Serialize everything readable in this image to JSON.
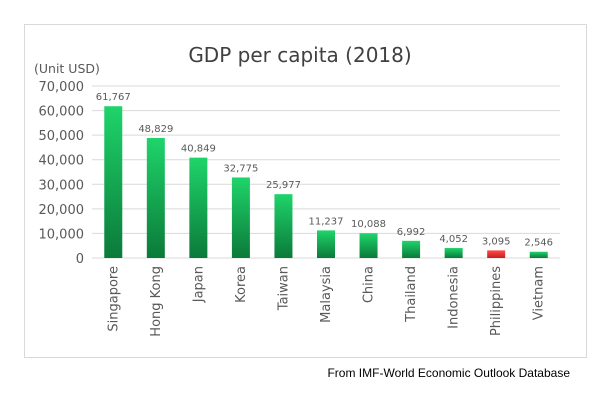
{
  "chart_data": {
    "type": "bar",
    "title": "GDP per capita (2018)",
    "unit_label": "(Unit USD)",
    "categories": [
      "Singapore",
      "Hong Kong",
      "Japan",
      "Korea",
      "Taiwan",
      "Malaysia",
      "China",
      "Thailand",
      "Indonesia",
      "Philippines",
      "Vietnam"
    ],
    "values": [
      61767,
      48829,
      40849,
      32775,
      25977,
      11237,
      10088,
      6992,
      4052,
      3095,
      2546
    ],
    "value_labels": [
      "61,767",
      "48,829",
      "40,849",
      "32,775",
      "25,977",
      "11,237",
      "10,088",
      "6,992",
      "4,052",
      "3,095",
      "2,546"
    ],
    "ylim": [
      0,
      70000
    ],
    "yticks": [
      0,
      10000,
      20000,
      30000,
      40000,
      50000,
      60000,
      70000
    ],
    "ytick_labels": [
      "0",
      "10,000",
      "20,000",
      "30,000",
      "40,000",
      "50,000",
      "60,000",
      "70,000"
    ],
    "grid": true,
    "colors": {
      "bar_top": "#1fd46a",
      "bar_bottom": "#0b7a3a",
      "highlight_top": "#ff4a4a",
      "highlight_bottom": "#c81e1e",
      "gridline": "#d9d9d9",
      "axis_text": "#595959",
      "title": "#404040"
    },
    "highlight_category": "Philippines"
  },
  "source_note": "From IMF-World Economic Outlook Database"
}
